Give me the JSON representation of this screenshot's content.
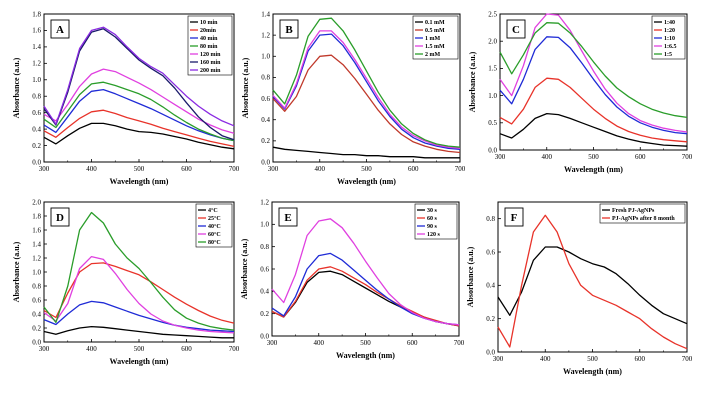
{
  "chart_data": [
    {
      "type": "line",
      "panel_label": "A",
      "xlabel": "Wavelength (nm)",
      "ylabel": "Absorbance (a.u.)",
      "xlim": [
        300,
        700
      ],
      "ylim": [
        0,
        1.8
      ],
      "xticks": [
        300,
        400,
        500,
        600,
        700
      ],
      "yticks": [
        0.0,
        0.2,
        0.4,
        0.6,
        0.8,
        1.0,
        1.2,
        1.4,
        1.6,
        1.8
      ],
      "ytick_labels": [
        "0.0",
        "0.2",
        "0.4",
        "0.6",
        "0.8",
        "1.0",
        "1.2",
        "1.4",
        "1.6",
        "1.8"
      ],
      "legend_position": "top-right",
      "x": [
        300,
        325,
        350,
        375,
        400,
        425,
        450,
        475,
        500,
        525,
        550,
        575,
        600,
        625,
        650,
        675,
        700
      ],
      "series": [
        {
          "name": "10 min",
          "color": "#000000",
          "values": [
            0.3,
            0.22,
            0.32,
            0.41,
            0.47,
            0.47,
            0.44,
            0.4,
            0.37,
            0.36,
            0.34,
            0.31,
            0.28,
            0.24,
            0.21,
            0.18,
            0.16
          ]
        },
        {
          "name": "20min",
          "color": "#e8332a",
          "values": [
            0.38,
            0.3,
            0.42,
            0.53,
            0.61,
            0.63,
            0.59,
            0.54,
            0.5,
            0.46,
            0.41,
            0.37,
            0.33,
            0.29,
            0.25,
            0.22,
            0.19
          ]
        },
        {
          "name": "40 min",
          "color": "#1f2bd6",
          "values": [
            0.45,
            0.36,
            0.55,
            0.74,
            0.86,
            0.88,
            0.83,
            0.77,
            0.71,
            0.65,
            0.58,
            0.51,
            0.44,
            0.38,
            0.33,
            0.29,
            0.26
          ]
        },
        {
          "name": "80 min",
          "color": "#2a9d2a",
          "values": [
            0.52,
            0.42,
            0.62,
            0.82,
            0.95,
            0.97,
            0.93,
            0.88,
            0.83,
            0.76,
            0.67,
            0.57,
            0.48,
            0.4,
            0.34,
            0.29,
            0.26
          ]
        },
        {
          "name": "120 min",
          "color": "#e040e0",
          "values": [
            0.58,
            0.5,
            0.7,
            0.92,
            1.07,
            1.13,
            1.1,
            1.03,
            0.96,
            0.88,
            0.79,
            0.7,
            0.61,
            0.52,
            0.45,
            0.39,
            0.35
          ]
        },
        {
          "name": "160 min",
          "color": "#1a1a6b",
          "values": [
            0.65,
            0.45,
            0.85,
            1.35,
            1.58,
            1.62,
            1.52,
            1.38,
            1.24,
            1.14,
            1.05,
            0.9,
            0.72,
            0.55,
            0.42,
            0.32,
            0.27
          ]
        },
        {
          "name": "200 min",
          "color": "#8a2be2",
          "values": [
            0.68,
            0.46,
            0.88,
            1.38,
            1.6,
            1.64,
            1.55,
            1.4,
            1.26,
            1.16,
            1.08,
            0.94,
            0.8,
            0.68,
            0.58,
            0.5,
            0.44
          ]
        }
      ]
    },
    {
      "type": "line",
      "panel_label": "B",
      "xlabel": "Wavelength (nm)",
      "ylabel": "Absorbance (a.u.)",
      "xlim": [
        300,
        700
      ],
      "ylim": [
        0,
        1.4
      ],
      "xticks": [
        300,
        400,
        500,
        600,
        700
      ],
      "yticks": [
        0.0,
        0.2,
        0.4,
        0.6,
        0.8,
        1.0,
        1.2,
        1.4
      ],
      "ytick_labels": [
        "0.0",
        "0.2",
        "0.4",
        "0.6",
        "0.8",
        "1.0",
        "1.2",
        "1.4"
      ],
      "legend_position": "top-right",
      "x": [
        300,
        325,
        350,
        375,
        400,
        425,
        450,
        475,
        500,
        525,
        550,
        575,
        600,
        625,
        650,
        675,
        700
      ],
      "series": [
        {
          "name": "0.1 mM",
          "color": "#000000",
          "values": [
            0.14,
            0.12,
            0.11,
            0.1,
            0.09,
            0.08,
            0.07,
            0.07,
            0.06,
            0.06,
            0.05,
            0.05,
            0.05,
            0.04,
            0.04,
            0.04,
            0.04
          ]
        },
        {
          "name": "0.5 mM",
          "color": "#c0392b",
          "values": [
            0.6,
            0.48,
            0.62,
            0.87,
            1.0,
            1.01,
            0.92,
            0.79,
            0.64,
            0.49,
            0.36,
            0.26,
            0.19,
            0.15,
            0.12,
            0.1,
            0.09
          ]
        },
        {
          "name": "1 mM",
          "color": "#1f2bd6",
          "values": [
            0.62,
            0.5,
            0.72,
            1.05,
            1.2,
            1.21,
            1.1,
            0.94,
            0.76,
            0.58,
            0.43,
            0.31,
            0.23,
            0.18,
            0.15,
            0.13,
            0.12
          ]
        },
        {
          "name": "1.5 mM",
          "color": "#e040e0",
          "values": [
            0.63,
            0.51,
            0.74,
            1.08,
            1.24,
            1.24,
            1.13,
            0.97,
            0.79,
            0.61,
            0.45,
            0.33,
            0.25,
            0.2,
            0.16,
            0.14,
            0.13
          ]
        },
        {
          "name": "2 mM",
          "color": "#2a9d2a",
          "values": [
            0.68,
            0.55,
            0.82,
            1.19,
            1.35,
            1.36,
            1.24,
            1.06,
            0.86,
            0.66,
            0.49,
            0.36,
            0.27,
            0.21,
            0.17,
            0.15,
            0.14
          ]
        }
      ]
    },
    {
      "type": "line",
      "panel_label": "C",
      "xlabel": "Wavelength (nm)",
      "ylabel": "Absorbance (a.u.)",
      "xlim": [
        300,
        700
      ],
      "ylim": [
        0,
        2.5
      ],
      "xticks": [
        300,
        400,
        500,
        600,
        700
      ],
      "yticks": [
        0.0,
        0.5,
        1.0,
        1.5,
        2.0,
        2.5
      ],
      "ytick_labels": [
        "0.0",
        "0.5",
        "1.0",
        "1.5",
        "2.0",
        "2.5"
      ],
      "legend_position": "top-right",
      "x": [
        300,
        325,
        350,
        375,
        400,
        425,
        450,
        475,
        500,
        525,
        550,
        575,
        600,
        625,
        650,
        675,
        700
      ],
      "series": [
        {
          "name": "1:40",
          "color": "#000000",
          "values": [
            0.3,
            0.22,
            0.38,
            0.58,
            0.67,
            0.65,
            0.58,
            0.5,
            0.42,
            0.34,
            0.26,
            0.2,
            0.15,
            0.12,
            0.09,
            0.08,
            0.07
          ]
        },
        {
          "name": "1:20",
          "color": "#e8332a",
          "values": [
            0.6,
            0.48,
            0.75,
            1.15,
            1.32,
            1.3,
            1.15,
            0.95,
            0.75,
            0.58,
            0.44,
            0.34,
            0.27,
            0.22,
            0.19,
            0.17,
            0.15
          ]
        },
        {
          "name": "1:10",
          "color": "#1f2bd6",
          "values": [
            1.1,
            0.85,
            1.3,
            1.85,
            2.08,
            2.07,
            1.88,
            1.6,
            1.3,
            1.02,
            0.79,
            0.62,
            0.5,
            0.42,
            0.36,
            0.32,
            0.3
          ]
        },
        {
          "name": "1:6.5",
          "color": "#e040e0",
          "values": [
            1.3,
            1.0,
            1.55,
            2.25,
            2.5,
            2.48,
            2.2,
            1.82,
            1.45,
            1.12,
            0.86,
            0.67,
            0.54,
            0.46,
            0.4,
            0.36,
            0.33
          ]
        },
        {
          "name": "1:5",
          "color": "#2a9d2a",
          "values": [
            1.8,
            1.4,
            1.75,
            2.15,
            2.34,
            2.33,
            2.15,
            1.9,
            1.62,
            1.36,
            1.14,
            0.98,
            0.85,
            0.75,
            0.68,
            0.63,
            0.6
          ]
        }
      ]
    },
    {
      "type": "line",
      "panel_label": "D",
      "xlabel": "Wavelength (nm)",
      "ylabel": "Absorbance (a.u.)",
      "xlim": [
        300,
        700
      ],
      "ylim": [
        0,
        2.0
      ],
      "xticks": [
        300,
        400,
        500,
        600,
        700
      ],
      "yticks": [
        0.0,
        0.2,
        0.4,
        0.6,
        0.8,
        1.0,
        1.2,
        1.4,
        1.6,
        1.8,
        2.0
      ],
      "ytick_labels": [
        "0.0",
        "0.2",
        "0.4",
        "0.6",
        "0.8",
        "1.0",
        "1.2",
        "1.4",
        "1.6",
        "1.8",
        "2.0"
      ],
      "legend_position": "top-right",
      "x": [
        300,
        325,
        350,
        375,
        400,
        425,
        450,
        475,
        500,
        525,
        550,
        575,
        600,
        625,
        650,
        675,
        700
      ],
      "series": [
        {
          "name": "4°C",
          "color": "#000000",
          "values": [
            0.15,
            0.11,
            0.16,
            0.2,
            0.22,
            0.21,
            0.19,
            0.17,
            0.15,
            0.13,
            0.11,
            0.1,
            0.09,
            0.08,
            0.07,
            0.06,
            0.06
          ]
        },
        {
          "name": "25°C",
          "color": "#e8332a",
          "values": [
            0.45,
            0.35,
            0.7,
            1.0,
            1.12,
            1.13,
            1.08,
            1.02,
            0.96,
            0.86,
            0.75,
            0.64,
            0.54,
            0.45,
            0.37,
            0.31,
            0.27
          ]
        },
        {
          "name": "40°C",
          "color": "#1f2bd6",
          "values": [
            0.32,
            0.25,
            0.4,
            0.53,
            0.58,
            0.56,
            0.5,
            0.44,
            0.38,
            0.33,
            0.28,
            0.24,
            0.21,
            0.19,
            0.17,
            0.16,
            0.15
          ]
        },
        {
          "name": "60°C",
          "color": "#e040e0",
          "values": [
            0.42,
            0.3,
            0.55,
            1.05,
            1.22,
            1.18,
            0.98,
            0.75,
            0.55,
            0.4,
            0.3,
            0.24,
            0.2,
            0.17,
            0.15,
            0.14,
            0.13
          ]
        },
        {
          "name": "80°C",
          "color": "#2a9d2a",
          "values": [
            0.5,
            0.28,
            0.8,
            1.6,
            1.85,
            1.7,
            1.4,
            1.2,
            1.05,
            0.85,
            0.64,
            0.46,
            0.34,
            0.27,
            0.22,
            0.19,
            0.17
          ]
        }
      ]
    },
    {
      "type": "line",
      "panel_label": "E",
      "xlabel": "Wavelength (nm)",
      "ylabel": "Absorbance (a.u.)",
      "xlim": [
        300,
        700
      ],
      "ylim": [
        0,
        1.2
      ],
      "xticks": [
        300,
        400,
        500,
        600,
        700
      ],
      "yticks": [
        0.0,
        0.2,
        0.4,
        0.6,
        0.8,
        1.0,
        1.2
      ],
      "ytick_labels": [
        "0.0",
        "0.2",
        "0.4",
        "0.6",
        "0.8",
        "1.0",
        "1.2"
      ],
      "legend_position": "top-right",
      "x": [
        300,
        325,
        350,
        375,
        400,
        425,
        450,
        475,
        500,
        525,
        550,
        575,
        600,
        625,
        650,
        675,
        700
      ],
      "series": [
        {
          "name": "30 s",
          "color": "#000000",
          "values": [
            0.22,
            0.17,
            0.3,
            0.48,
            0.57,
            0.58,
            0.55,
            0.49,
            0.43,
            0.37,
            0.31,
            0.26,
            0.21,
            0.17,
            0.13,
            0.11,
            0.09
          ]
        },
        {
          "name": "60 s",
          "color": "#e8332a",
          "values": [
            0.22,
            0.17,
            0.31,
            0.5,
            0.6,
            0.62,
            0.58,
            0.52,
            0.46,
            0.39,
            0.33,
            0.27,
            0.22,
            0.17,
            0.14,
            0.11,
            0.09
          ]
        },
        {
          "name": "90 s",
          "color": "#1f2bd6",
          "values": [
            0.25,
            0.18,
            0.35,
            0.6,
            0.72,
            0.74,
            0.68,
            0.59,
            0.5,
            0.41,
            0.33,
            0.26,
            0.2,
            0.16,
            0.13,
            0.11,
            0.1
          ]
        },
        {
          "name": "120 s",
          "color": "#e040e0",
          "values": [
            0.42,
            0.3,
            0.55,
            0.9,
            1.03,
            1.05,
            0.97,
            0.83,
            0.67,
            0.52,
            0.38,
            0.28,
            0.21,
            0.16,
            0.13,
            0.11,
            0.1
          ]
        }
      ]
    },
    {
      "type": "line",
      "panel_label": "F",
      "xlabel": "Wavelength (nm)",
      "ylabel": "Absorbance (a.u.)",
      "xlim": [
        300,
        700
      ],
      "ylim": [
        0,
        0.9
      ],
      "xticks": [
        300,
        400,
        500,
        600,
        700
      ],
      "yticks": [
        0.0,
        0.2,
        0.4,
        0.6,
        0.8
      ],
      "ytick_labels": [
        "0.0",
        "0.2",
        "0.4",
        "0.6",
        "0.8"
      ],
      "legend_position": "top-right",
      "x": [
        300,
        325,
        350,
        375,
        400,
        425,
        450,
        475,
        500,
        525,
        550,
        575,
        600,
        625,
        650,
        675,
        700
      ],
      "series": [
        {
          "name": "Fresh PJ-AgNPs",
          "color": "#000000",
          "values": [
            0.33,
            0.22,
            0.36,
            0.55,
            0.63,
            0.63,
            0.6,
            0.56,
            0.53,
            0.51,
            0.47,
            0.41,
            0.34,
            0.28,
            0.23,
            0.2,
            0.17
          ]
        },
        {
          "name": "PJ-AgNPs after 8 month",
          "color": "#e8332a",
          "values": [
            0.15,
            0.03,
            0.4,
            0.72,
            0.82,
            0.72,
            0.53,
            0.4,
            0.34,
            0.31,
            0.28,
            0.24,
            0.2,
            0.14,
            0.09,
            0.05,
            0.02
          ]
        }
      ]
    }
  ]
}
